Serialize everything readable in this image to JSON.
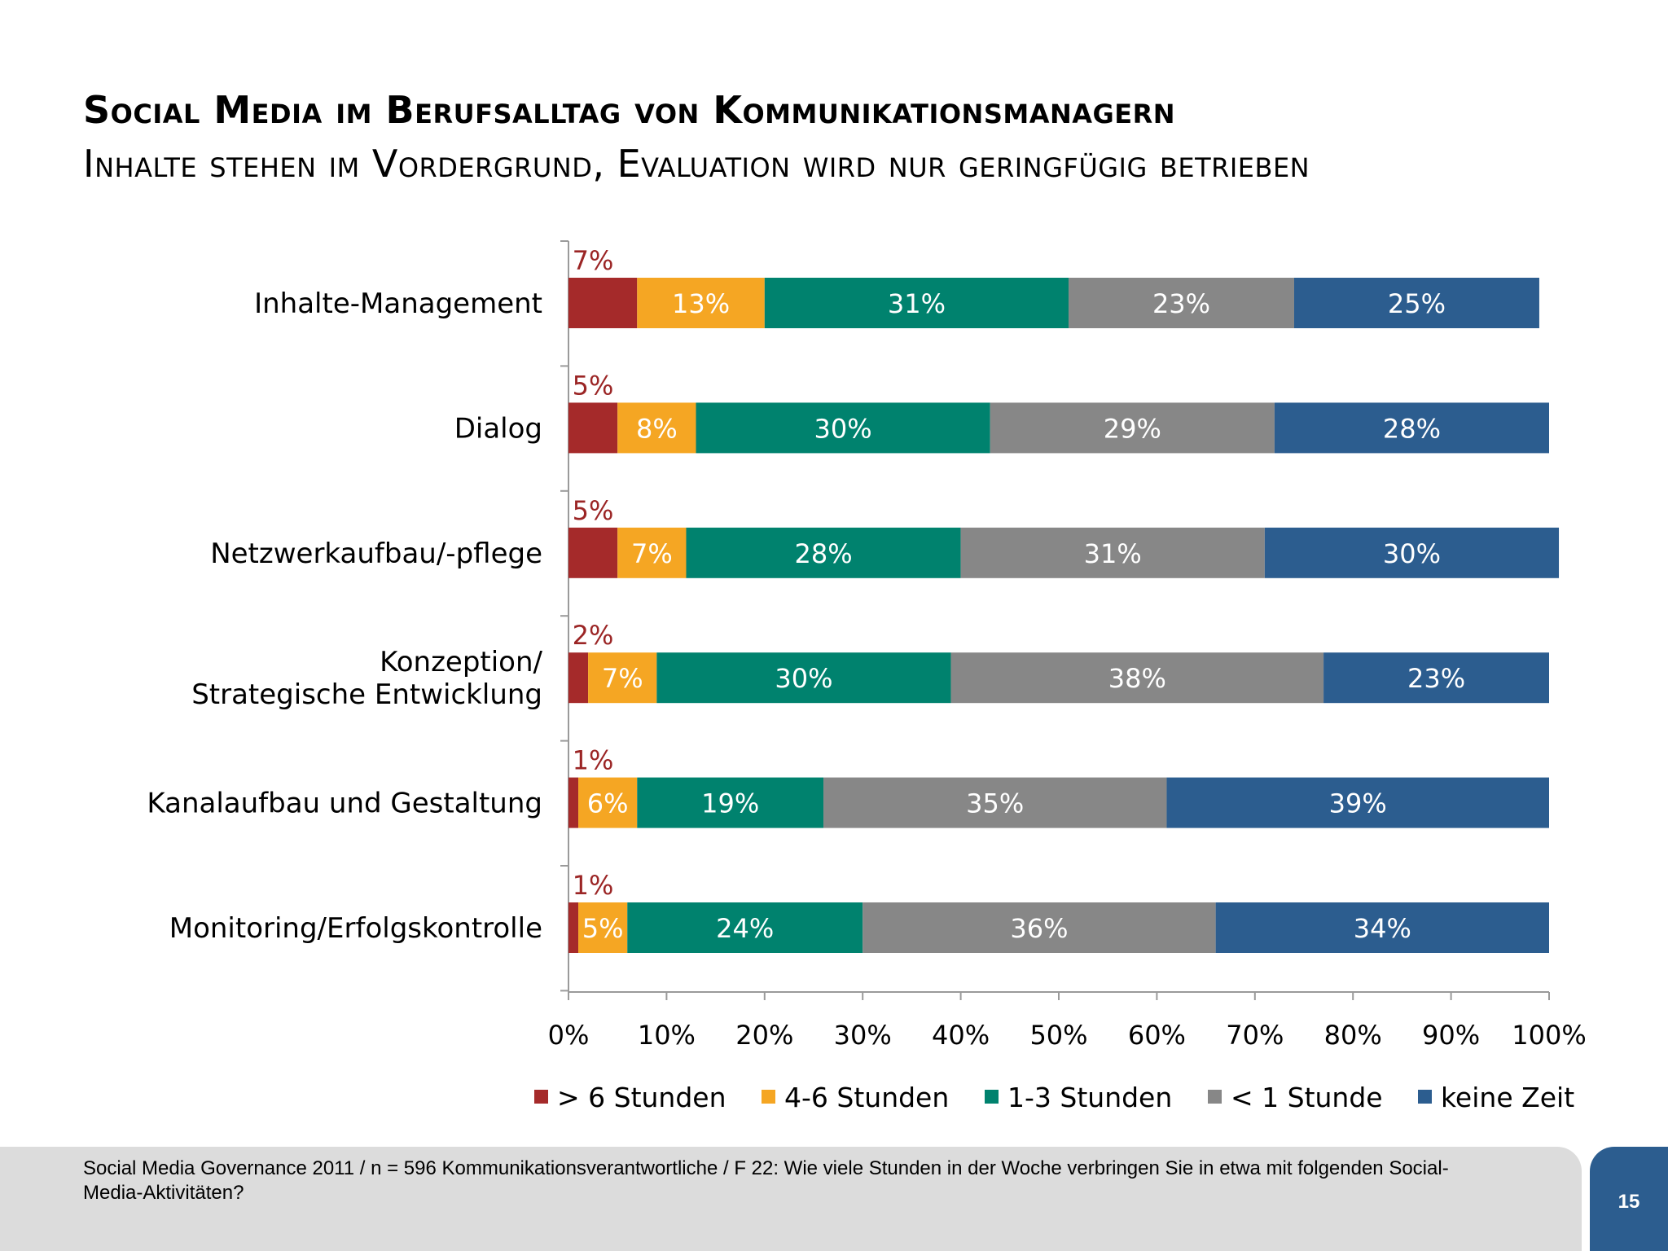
{
  "slide": {
    "title": "Social Media im Berufsalltag von Kommunikationsmanagern",
    "subtitle": "Inhalte stehen im Vordergrund, Evaluation wird nur geringfügig betrieben",
    "footer_note": "Social Media Governance 2011 / n = 596 Kommunikationsverantwortliche / F 22: Wie viele Stunden in der Woche verbringen Sie in etwa mit folgenden Social-Media-Aktivitäten?",
    "page_number": "15"
  },
  "chart_data": {
    "type": "bar",
    "orientation": "horizontal",
    "stacked": true,
    "categories": [
      "Inhalte-Management",
      "Dialog",
      "Netzwerkaufbau/-pflege",
      "Konzeption/\nStrategische Entwicklung",
      "Kanalaufbau und Gestaltung",
      "Monitoring/Erfolgskontrolle"
    ],
    "series": [
      {
        "name": "> 6 Stunden",
        "color": "#a52a2a",
        "values": [
          7,
          5,
          5,
          2,
          1,
          1
        ]
      },
      {
        "name": "4-6 Stunden",
        "color": "#f5a623",
        "values": [
          13,
          8,
          7,
          7,
          6,
          5
        ]
      },
      {
        "name": "1-3 Stunden",
        "color": "#00826e",
        "values": [
          31,
          30,
          28,
          30,
          19,
          24
        ]
      },
      {
        "name": "< 1 Stunde",
        "color": "#878787",
        "values": [
          23,
          29,
          31,
          38,
          35,
          36
        ]
      },
      {
        "name": "keine Zeit",
        "color": "#2c5d8f",
        "values": [
          25,
          28,
          30,
          23,
          39,
          34
        ]
      }
    ],
    "value_labels": [
      [
        "7%",
        "13%",
        "31%",
        "23%",
        "25%"
      ],
      [
        "5%",
        "8%",
        "30%",
        "29%",
        "28%"
      ],
      [
        "5%",
        "7%",
        "28%",
        "31%",
        "30%"
      ],
      [
        "2%",
        "7%",
        "30%",
        "38%",
        "23%"
      ],
      [
        "1%",
        "6%",
        "19%",
        "35%",
        "39%"
      ],
      [
        "1%",
        "5%",
        "24%",
        "36%",
        "34%"
      ]
    ],
    "xlim": [
      0,
      100
    ],
    "x_ticks": [
      "0%",
      "10%",
      "20%",
      "30%",
      "40%",
      "50%",
      "60%",
      "70%",
      "80%",
      "90%",
      "100%"
    ],
    "grid": false,
    "legend_position": "bottom"
  }
}
